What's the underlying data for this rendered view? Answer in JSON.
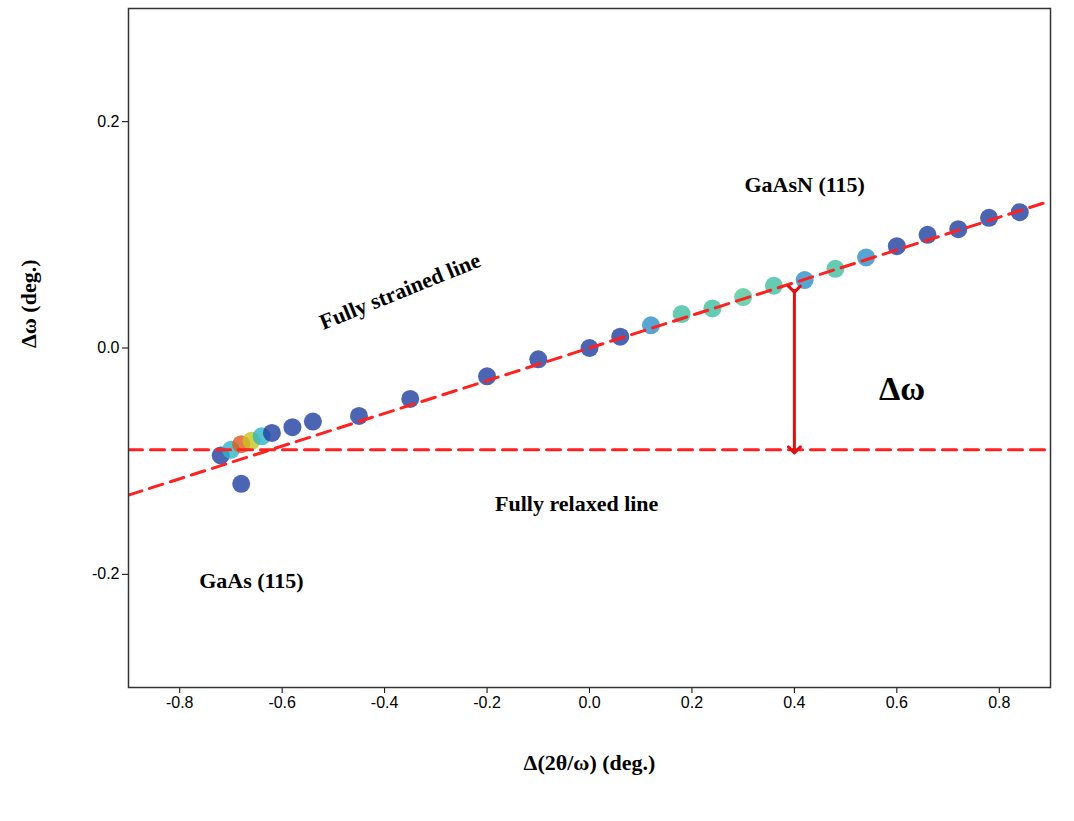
{
  "chart_data": {
    "type": "scatter",
    "x_label": "Δ(2θ/ω) (deg.)",
    "y_label": "Δω (deg.)",
    "xlim": [
      -0.9,
      0.9
    ],
    "ylim": [
      -0.3,
      0.3
    ],
    "xticks": [
      -0.8,
      -0.6,
      -0.4,
      -0.2,
      {
        "value": 0,
        "label": "0.0"
      },
      0.2,
      0.4,
      0.6,
      0.8
    ],
    "yticks": [
      -0.2,
      {
        "value": 0,
        "label": "0.0"
      },
      0.2
    ],
    "x": [
      -0.72,
      -0.7,
      -0.68,
      -0.66,
      -0.64,
      -0.62,
      -0.58,
      -0.54,
      -0.68,
      -0.45,
      -0.35,
      -0.2,
      -0.1,
      0.0,
      0.06,
      0.12,
      0.18,
      0.24,
      0.3,
      0.36,
      0.42,
      0.48,
      0.54,
      0.6,
      0.66,
      0.72,
      0.78,
      0.84
    ],
    "y": [
      -0.095,
      -0.09,
      -0.085,
      -0.082,
      -0.078,
      -0.075,
      -0.07,
      -0.065,
      -0.12,
      -0.06,
      -0.045,
      -0.025,
      -0.01,
      0.0,
      0.01,
      0.02,
      0.03,
      0.035,
      0.045,
      0.055,
      0.06,
      0.07,
      0.08,
      0.09,
      0.1,
      0.105,
      0.115,
      0.12
    ],
    "colors": [
      "#1f3fa0",
      "#2cb5c8",
      "#e05a1e",
      "#c9c31f",
      "#2cb5c8",
      "#1f3fa0",
      "#1f3fa0",
      "#1f3fa0",
      "#1f3fa0",
      "#1f3fa0",
      "#1f3fa0",
      "#1f3fa0",
      "#1f3fa0",
      "#1f3fa0",
      "#1f3fa0",
      "#2c8fc8",
      "#3fbfa0",
      "#3fbfa0",
      "#4fc79a",
      "#3fbfa0",
      "#2c8fc8",
      "#3fbfa0",
      "#2c8fc8",
      "#1f3fa0",
      "#1f3fa0",
      "#1f3fa0",
      "#1f3fa0",
      "#1f3fa0"
    ],
    "lines": [
      {
        "x": [
          -0.9,
          0.9
        ],
        "y": [
          -0.13,
          0.13
        ],
        "color": "#ff2020",
        "line_style": "dashed"
      },
      {
        "x": [
          -0.9,
          0.9
        ],
        "y": [
          -0.09,
          -0.09
        ],
        "color": "#ff2020",
        "line_style": "dashed"
      }
    ],
    "arrow": {
      "x": 0.4,
      "y": [
        0.052,
        -0.09
      ],
      "color": "#e01010"
    },
    "annotations": [
      {
        "text": "GaAsN (115)",
        "x": 0.42,
        "y": 0.144
      },
      {
        "text": "Fully strained line",
        "x": -0.37,
        "y": 0.05
      },
      {
        "text": "Δω",
        "x": 0.61,
        "y": -0.036
      },
      {
        "text": "Fully relaxed line",
        "x": -0.025,
        "y": -0.138
      },
      {
        "text": "GaAs (115)",
        "x": -0.66,
        "y": -0.206
      }
    ]
  }
}
